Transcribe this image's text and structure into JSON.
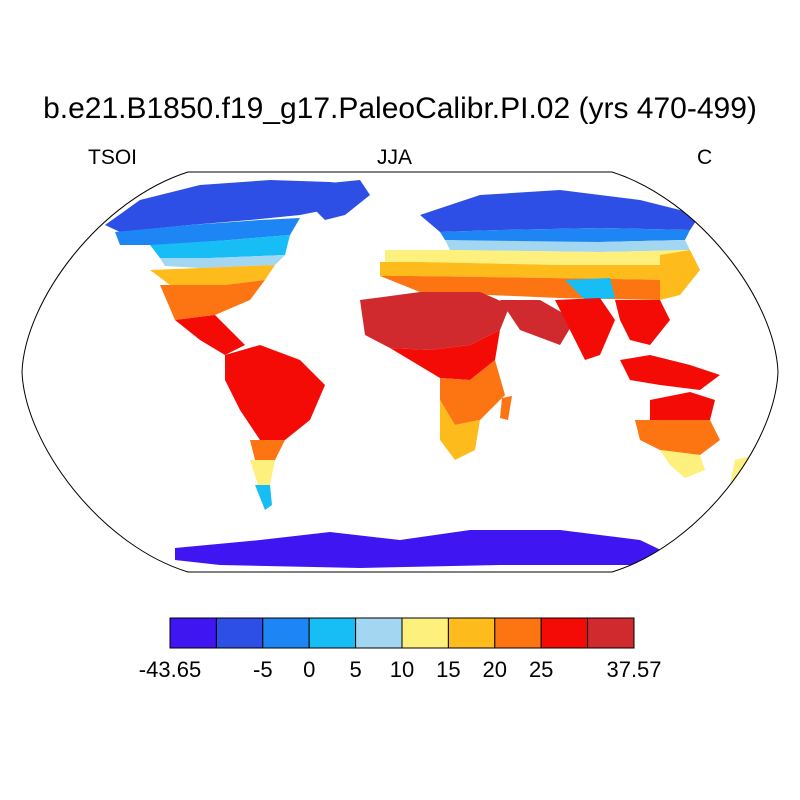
{
  "title": "b.e21.B1850.f19_g17.PaleoCalibr.PI.02 (yrs 470-499)",
  "subtitle_left": "TSOI",
  "subtitle_center": "JJA",
  "subtitle_right": "C",
  "map": {
    "projection": "robinson",
    "variable": "TSOI",
    "season": "JJA",
    "units": "C",
    "land_only": true
  },
  "colorbar": {
    "colors": [
      "#3f16f2",
      "#2d4fe6",
      "#1e86f4",
      "#17bdf5",
      "#a3d6f0",
      "#fdf07c",
      "#fdbb1c",
      "#fd7412",
      "#f50b05",
      "#d02a2e"
    ],
    "labels": [
      "-43.65",
      "-5",
      "0",
      "5",
      "10",
      "15",
      "20",
      "25",
      "37.57"
    ]
  }
}
